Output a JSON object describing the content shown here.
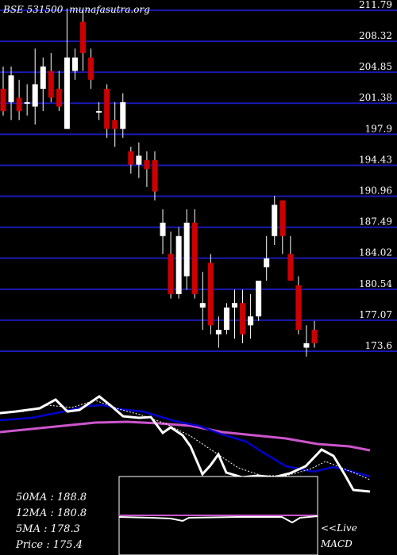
{
  "header": {
    "ticker": "BSE 531500",
    "site": "munafasutra.org"
  },
  "stats": [
    {
      "label": "50MA",
      "sep": ":",
      "value": "188.8"
    },
    {
      "label": "12MA",
      "sep": ":",
      "value": "180.8"
    },
    {
      "label": "5MA",
      "sep": ":",
      "value": "178.3"
    },
    {
      "label": "Price",
      "sep": "  :",
      "value": "175.4"
    }
  ],
  "macd_label_1": "<<Live",
  "macd_label_2": "MACD",
  "colors": {
    "background": "#000000",
    "grid": "#1a1ab4",
    "up": "#ffffff",
    "down": "#cc0000",
    "ma_fast": "#ffffff",
    "ma_mid": "#0000cc",
    "ma_slow": "#cc55cc",
    "macd_box": "#ffffff"
  },
  "chart_data": {
    "type": "candlestick",
    "y_ticks": [
      211.79,
      208.32,
      204.85,
      201.38,
      197.9,
      194.43,
      190.96,
      187.49,
      184.02,
      180.54,
      177.07,
      173.6
    ],
    "ylim": [
      173.6,
      211.79
    ],
    "candles": [
      {
        "o": 203.0,
        "h": 205.5,
        "l": 200.0,
        "c": 200.5
      },
      {
        "o": 201.5,
        "h": 205.5,
        "l": 199.5,
        "c": 204.5
      },
      {
        "o": 202.0,
        "h": 204.0,
        "l": 199.5,
        "c": 200.5
      },
      {
        "o": 201.5,
        "h": 203.5,
        "l": 200.0,
        "c": 201.5
      },
      {
        "o": 201.0,
        "h": 207.5,
        "l": 199.0,
        "c": 203.5
      },
      {
        "o": 203.0,
        "h": 206.5,
        "l": 200.5,
        "c": 205.5
      },
      {
        "o": 205.0,
        "h": 207.0,
        "l": 201.5,
        "c": 202.0
      },
      {
        "o": 203.0,
        "h": 205.0,
        "l": 200.5,
        "c": 201.0
      },
      {
        "o": 198.5,
        "h": 212.0,
        "l": 198.5,
        "c": 206.5
      },
      {
        "o": 205.0,
        "h": 207.5,
        "l": 204.0,
        "c": 206.5
      },
      {
        "o": 210.5,
        "h": 211.8,
        "l": 205.0,
        "c": 207.0
      },
      {
        "o": 206.5,
        "h": 207.5,
        "l": 203.0,
        "c": 204.0
      },
      {
        "o": 200.5,
        "h": 201.5,
        "l": 199.5,
        "c": 200.5
      },
      {
        "o": 203.0,
        "h": 203.5,
        "l": 197.5,
        "c": 198.5
      },
      {
        "o": 199.5,
        "h": 201.5,
        "l": 196.5,
        "c": 198.5
      },
      {
        "o": 198.5,
        "h": 202.5,
        "l": 197.5,
        "c": 201.5
      },
      {
        "o": 196.0,
        "h": 196.5,
        "l": 193.5,
        "c": 194.5
      },
      {
        "o": 194.5,
        "h": 197.0,
        "l": 193.0,
        "c": 195.5
      },
      {
        "o": 195.0,
        "h": 196.0,
        "l": 192.0,
        "c": 194.0
      },
      {
        "o": 195.0,
        "h": 196.0,
        "l": 190.5,
        "c": 191.5
      },
      {
        "o": 186.5,
        "h": 189.5,
        "l": 184.5,
        "c": 188.0
      },
      {
        "o": 184.5,
        "h": 187.0,
        "l": 179.5,
        "c": 180.0
      },
      {
        "o": 180.0,
        "h": 187.5,
        "l": 179.5,
        "c": 186.5
      },
      {
        "o": 182.0,
        "h": 189.5,
        "l": 180.5,
        "c": 188.0
      },
      {
        "o": 188.0,
        "h": 189.5,
        "l": 179.5,
        "c": 180.0
      },
      {
        "o": 178.5,
        "h": 182.5,
        "l": 176.0,
        "c": 179.0
      },
      {
        "o": 183.5,
        "h": 184.5,
        "l": 175.5,
        "c": 176.5
      },
      {
        "o": 175.5,
        "h": 177.5,
        "l": 174.0,
        "c": 176.0
      },
      {
        "o": 176.0,
        "h": 179.0,
        "l": 175.5,
        "c": 178.5
      },
      {
        "o": 178.5,
        "h": 180.5,
        "l": 175.0,
        "c": 179.0
      },
      {
        "o": 179.0,
        "h": 180.5,
        "l": 174.5,
        "c": 175.5
      },
      {
        "o": 176.5,
        "h": 180.0,
        "l": 175.0,
        "c": 177.5
      },
      {
        "o": 177.5,
        "h": 181.5,
        "l": 177.0,
        "c": 181.5
      },
      {
        "o": 183.0,
        "h": 186.5,
        "l": 181.5,
        "c": 184.0
      },
      {
        "o": 186.5,
        "h": 191.0,
        "l": 185.5,
        "c": 190.0
      },
      {
        "o": 190.5,
        "h": 190.5,
        "l": 184.5,
        "c": 186.5
      },
      {
        "o": 184.5,
        "h": 186.5,
        "l": 181.5,
        "c": 181.5
      },
      {
        "o": 181.0,
        "h": 182.0,
        "l": 175.5,
        "c": 176.0
      },
      {
        "o": 174.0,
        "h": 176.5,
        "l": 173.0,
        "c": 174.5
      },
      {
        "o": 176.0,
        "h": 177.0,
        "l": 174.0,
        "c": 174.5
      }
    ]
  }
}
